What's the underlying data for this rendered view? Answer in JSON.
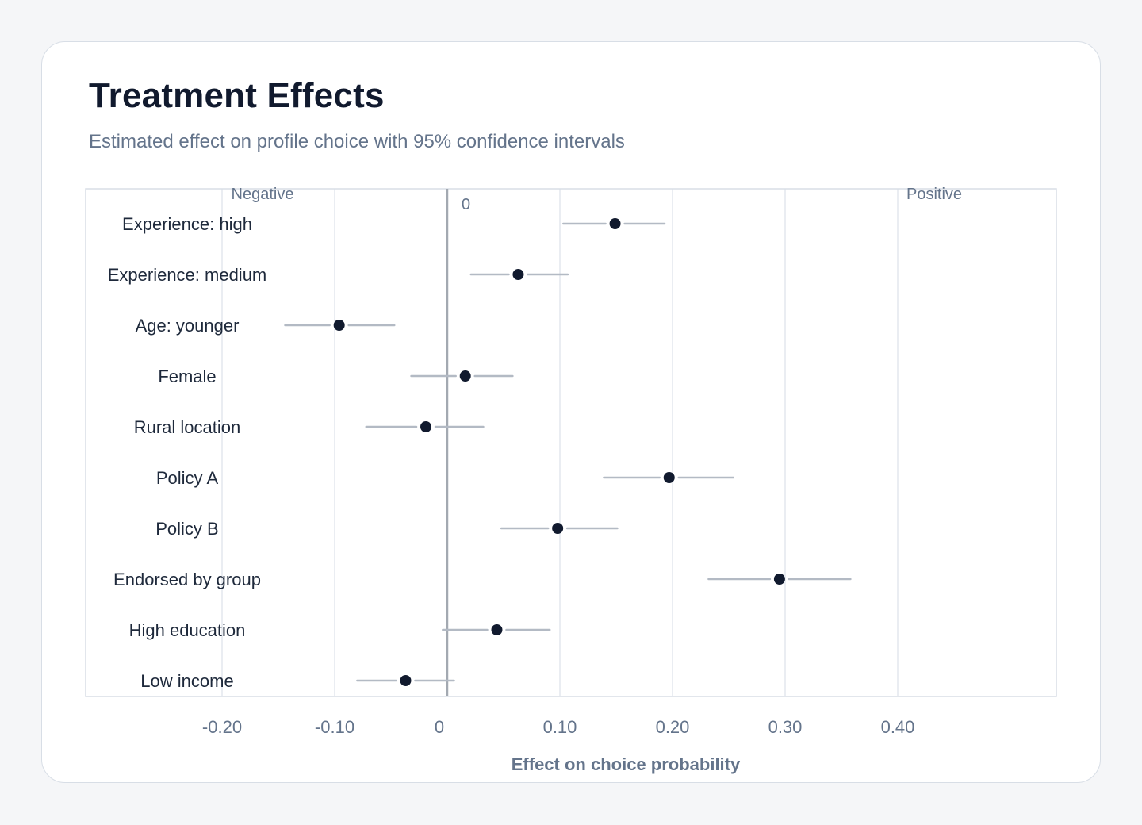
{
  "header": {
    "title": "Treatment Effects",
    "subtitle": "Estimated effect on profile choice with 95% confidence intervals"
  },
  "colors": {
    "point": "#111a2e",
    "ci": "#b3bac4",
    "zero_line": "#a3a9b1",
    "grid": "#e3e7ed",
    "frame": "#d8dee6"
  },
  "chart_data": {
    "type": "scatter",
    "subtype": "coefficient-plot",
    "title": "Treatment Effects",
    "subtitle": "Estimated effect on profile choice with 95% confidence intervals",
    "xlabel": "Effect on choice probability",
    "ylabel": "",
    "xlim": [
      -0.3,
      0.56
    ],
    "xticks": [
      -0.2,
      -0.1,
      0,
      0.1,
      0.2,
      0.3,
      0.4
    ],
    "xtick_labels": [
      "-0.20",
      "-0.10",
      "0",
      "0.10",
      "0.20",
      "0.30",
      "0.40"
    ],
    "grid": true,
    "reference_line": 0,
    "reference_label": "0",
    "annotations": {
      "negative": "Negative",
      "positive": "Positive"
    },
    "rows": [
      {
        "label": "Experience: high",
        "estimate": 0.149,
        "ci_low": 0.103,
        "ci_high": 0.193
      },
      {
        "label": "Experience: medium",
        "estimate": 0.063,
        "ci_low": 0.021,
        "ci_high": 0.107
      },
      {
        "label": "Age: younger",
        "estimate": -0.096,
        "ci_low": -0.144,
        "ci_high": -0.047
      },
      {
        "label": "Female",
        "estimate": 0.016,
        "ci_low": -0.032,
        "ci_high": 0.058
      },
      {
        "label": "Rural location",
        "estimate": -0.019,
        "ci_low": -0.072,
        "ci_high": 0.032
      },
      {
        "label": "Policy A",
        "estimate": 0.197,
        "ci_low": 0.139,
        "ci_high": 0.254
      },
      {
        "label": "Policy B",
        "estimate": 0.098,
        "ci_low": 0.048,
        "ci_high": 0.151
      },
      {
        "label": "Endorsed by group",
        "estimate": 0.295,
        "ci_low": 0.232,
        "ci_high": 0.358
      },
      {
        "label": "High education",
        "estimate": 0.044,
        "ci_low": -0.004,
        "ci_high": 0.091
      },
      {
        "label": "Low income",
        "estimate": -0.037,
        "ci_low": -0.08,
        "ci_high": 0.006
      }
    ]
  }
}
